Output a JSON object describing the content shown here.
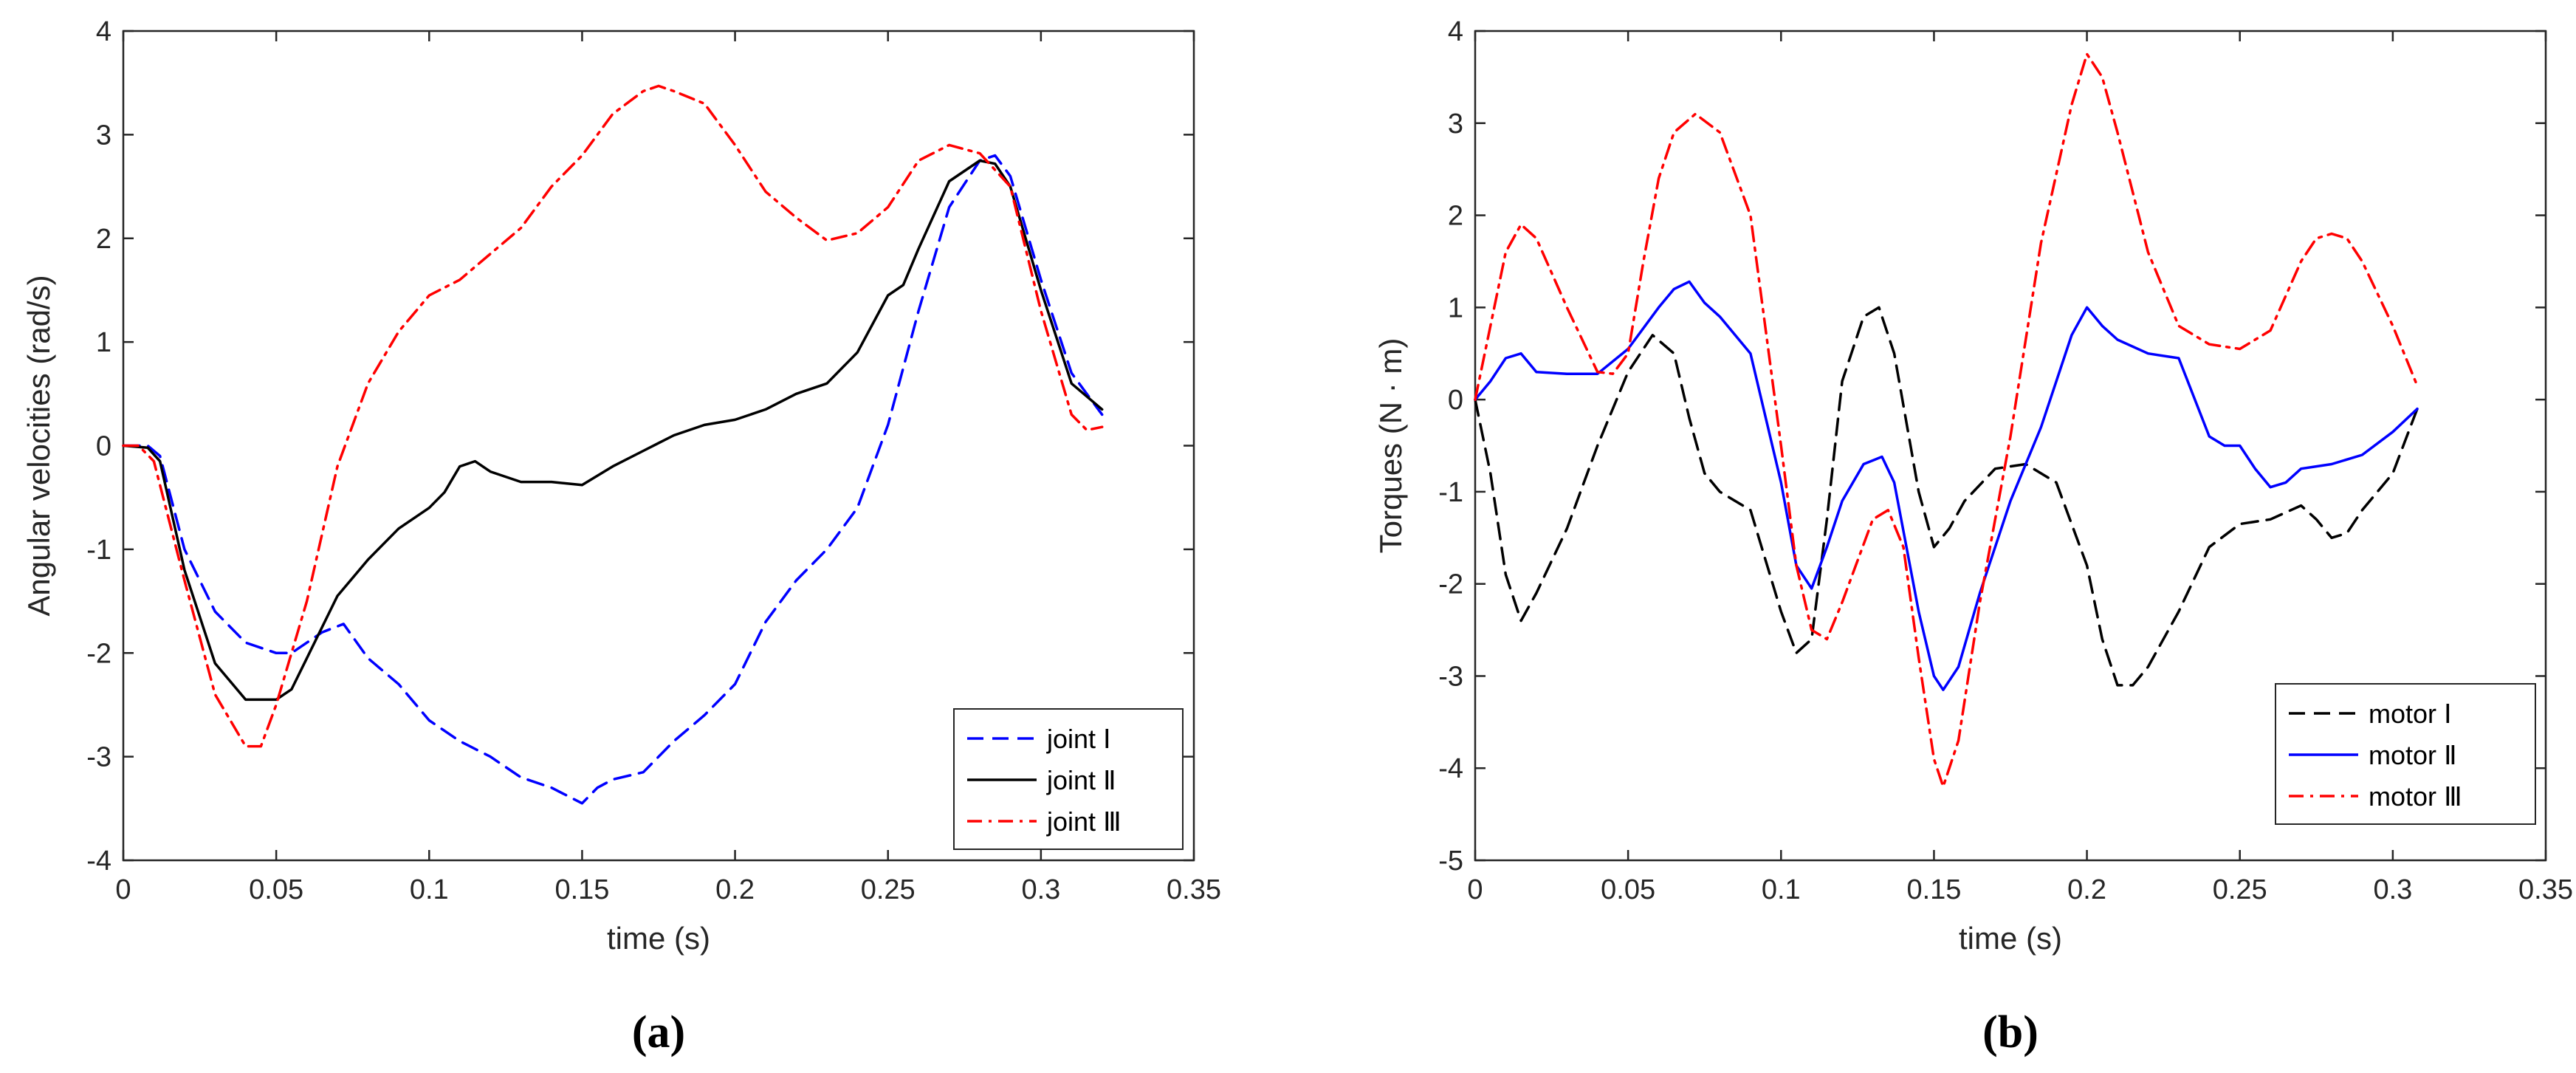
{
  "chart_data": [
    {
      "type": "line",
      "caption": "(a)",
      "xlabel": "time (s)",
      "ylabel": "Angular velocities  (rad/s)",
      "xlim": [
        0,
        0.35
      ],
      "ylim": [
        -4,
        4
      ],
      "xticks": [
        0,
        0.05,
        0.1,
        0.15,
        0.2,
        0.25,
        0.3,
        0.35
      ],
      "xtick_labels": [
        "0",
        "0.05",
        "0.1",
        "0.15",
        "0.2",
        "0.25",
        "0.3",
        "0.35"
      ],
      "yticks": [
        -4,
        -3,
        -2,
        -1,
        0,
        1,
        2,
        3,
        4
      ],
      "ytick_labels": [
        "-4",
        "-3",
        "-2",
        "-1",
        "0",
        "1",
        "2",
        "3",
        "4"
      ],
      "legend_position": "bottom-right",
      "series": [
        {
          "name": "joint Ⅰ",
          "color": "#0000ff",
          "style": "dashed",
          "x": [
            0,
            0.008,
            0.012,
            0.02,
            0.03,
            0.04,
            0.05,
            0.055,
            0.065,
            0.072,
            0.08,
            0.09,
            0.1,
            0.11,
            0.12,
            0.13,
            0.14,
            0.15,
            0.155,
            0.16,
            0.17,
            0.18,
            0.19,
            0.2,
            0.21,
            0.22,
            0.23,
            0.24,
            0.25,
            0.26,
            0.27,
            0.28,
            0.285,
            0.29,
            0.3,
            0.31,
            0.32
          ],
          "y": [
            0,
            0,
            -0.1,
            -1.0,
            -1.6,
            -1.9,
            -2.0,
            -2.0,
            -1.8,
            -1.72,
            -2.05,
            -2.3,
            -2.65,
            -2.85,
            -3.0,
            -3.2,
            -3.3,
            -3.45,
            -3.3,
            -3.22,
            -3.15,
            -2.85,
            -2.6,
            -2.3,
            -1.7,
            -1.3,
            -1.0,
            -0.6,
            0.2,
            1.3,
            2.3,
            2.75,
            2.8,
            2.6,
            1.6,
            0.7,
            0.3
          ]
        },
        {
          "name": "joint Ⅱ",
          "color": "#000000",
          "style": "solid",
          "x": [
            0,
            0.008,
            0.012,
            0.02,
            0.03,
            0.04,
            0.05,
            0.055,
            0.06,
            0.07,
            0.08,
            0.09,
            0.1,
            0.105,
            0.11,
            0.115,
            0.12,
            0.13,
            0.14,
            0.15,
            0.16,
            0.17,
            0.18,
            0.19,
            0.2,
            0.21,
            0.22,
            0.23,
            0.24,
            0.25,
            0.255,
            0.26,
            0.27,
            0.28,
            0.285,
            0.29,
            0.3,
            0.31,
            0.32
          ],
          "y": [
            0,
            -0.02,
            -0.15,
            -1.2,
            -2.1,
            -2.45,
            -2.45,
            -2.35,
            -2.05,
            -1.45,
            -1.1,
            -0.8,
            -0.6,
            -0.45,
            -0.2,
            -0.15,
            -0.25,
            -0.35,
            -0.35,
            -0.38,
            -0.2,
            -0.05,
            0.1,
            0.2,
            0.25,
            0.35,
            0.5,
            0.6,
            0.9,
            1.45,
            1.55,
            1.9,
            2.55,
            2.75,
            2.72,
            2.5,
            1.5,
            0.6,
            0.35
          ]
        },
        {
          "name": "joint Ⅲ",
          "color": "#ff0000",
          "style": "dashdot",
          "x": [
            0,
            0.005,
            0.01,
            0.02,
            0.03,
            0.04,
            0.045,
            0.05,
            0.06,
            0.07,
            0.08,
            0.09,
            0.1,
            0.11,
            0.12,
            0.13,
            0.14,
            0.15,
            0.16,
            0.17,
            0.175,
            0.18,
            0.19,
            0.2,
            0.21,
            0.22,
            0.23,
            0.24,
            0.25,
            0.26,
            0.27,
            0.28,
            0.29,
            0.3,
            0.31,
            0.315,
            0.32
          ],
          "y": [
            0,
            0,
            -0.15,
            -1.3,
            -2.4,
            -2.9,
            -2.9,
            -2.5,
            -1.5,
            -0.2,
            0.6,
            1.1,
            1.45,
            1.6,
            1.85,
            2.1,
            2.5,
            2.8,
            3.2,
            3.42,
            3.47,
            3.42,
            3.3,
            2.9,
            2.45,
            2.2,
            1.98,
            2.05,
            2.3,
            2.75,
            2.9,
            2.82,
            2.5,
            1.3,
            0.3,
            0.15,
            0.18
          ]
        }
      ]
    },
    {
      "type": "line",
      "caption": "(b)",
      "xlabel": "time (s)",
      "ylabel": "Torques  (N · m)",
      "xlim": [
        0,
        0.35
      ],
      "ylim": [
        -5,
        4
      ],
      "xticks": [
        0,
        0.05,
        0.1,
        0.15,
        0.2,
        0.25,
        0.3,
        0.35
      ],
      "xtick_labels": [
        "0",
        "0.05",
        "0.1",
        "0.15",
        "0.2",
        "0.25",
        "0.3",
        "0.35"
      ],
      "yticks": [
        -5,
        -4,
        -3,
        -2,
        -1,
        0,
        1,
        2,
        3,
        4
      ],
      "ytick_labels": [
        "-5",
        "-4",
        "-3",
        "-2",
        "-1",
        "0",
        "1",
        "2",
        "3",
        "4"
      ],
      "legend_position": "bottom-right",
      "series": [
        {
          "name": "motor Ⅰ",
          "color": "#000000",
          "style": "dashed",
          "x": [
            0,
            0.005,
            0.01,
            0.015,
            0.02,
            0.03,
            0.04,
            0.05,
            0.058,
            0.065,
            0.07,
            0.075,
            0.08,
            0.09,
            0.1,
            0.105,
            0.11,
            0.115,
            0.12,
            0.127,
            0.132,
            0.137,
            0.145,
            0.15,
            0.155,
            0.16,
            0.17,
            0.18,
            0.19,
            0.2,
            0.205,
            0.21,
            0.215,
            0.22,
            0.23,
            0.24,
            0.25,
            0.26,
            0.27,
            0.275,
            0.28,
            0.285,
            0.29,
            0.3,
            0.308
          ],
          "y": [
            0,
            -0.8,
            -1.9,
            -2.4,
            -2.1,
            -1.4,
            -0.5,
            0.3,
            0.7,
            0.5,
            -0.2,
            -0.8,
            -1.0,
            -1.2,
            -2.3,
            -2.75,
            -2.6,
            -1.3,
            0.2,
            0.9,
            1.0,
            0.5,
            -1.0,
            -1.6,
            -1.4,
            -1.1,
            -0.75,
            -0.7,
            -0.9,
            -1.8,
            -2.6,
            -3.1,
            -3.1,
            -2.9,
            -2.3,
            -1.6,
            -1.35,
            -1.3,
            -1.15,
            -1.3,
            -1.5,
            -1.45,
            -1.2,
            -0.8,
            -0.1
          ]
        },
        {
          "name": "motor Ⅱ",
          "color": "#0000ff",
          "style": "solid",
          "x": [
            0,
            0.005,
            0.01,
            0.015,
            0.02,
            0.03,
            0.04,
            0.05,
            0.06,
            0.065,
            0.07,
            0.075,
            0.08,
            0.09,
            0.1,
            0.105,
            0.11,
            0.115,
            0.12,
            0.127,
            0.133,
            0.137,
            0.145,
            0.15,
            0.153,
            0.158,
            0.165,
            0.175,
            0.185,
            0.195,
            0.2,
            0.205,
            0.21,
            0.22,
            0.23,
            0.24,
            0.245,
            0.25,
            0.255,
            0.26,
            0.265,
            0.27,
            0.28,
            0.29,
            0.3,
            0.308
          ],
          "y": [
            0,
            0.2,
            0.45,
            0.5,
            0.3,
            0.28,
            0.28,
            0.55,
            1.0,
            1.2,
            1.28,
            1.05,
            0.9,
            0.5,
            -0.9,
            -1.8,
            -2.05,
            -1.6,
            -1.1,
            -0.7,
            -0.62,
            -0.9,
            -2.3,
            -3.0,
            -3.15,
            -2.9,
            -2.1,
            -1.1,
            -0.3,
            0.7,
            1.0,
            0.8,
            0.65,
            0.5,
            0.45,
            -0.4,
            -0.5,
            -0.5,
            -0.75,
            -0.95,
            -0.9,
            -0.75,
            -0.7,
            -0.6,
            -0.35,
            -0.1
          ]
        },
        {
          "name": "motor Ⅲ",
          "color": "#ff0000",
          "style": "dashdot",
          "x": [
            0,
            0.005,
            0.01,
            0.015,
            0.02,
            0.03,
            0.04,
            0.045,
            0.05,
            0.055,
            0.06,
            0.065,
            0.072,
            0.08,
            0.09,
            0.1,
            0.105,
            0.11,
            0.115,
            0.12,
            0.13,
            0.135,
            0.14,
            0.145,
            0.15,
            0.153,
            0.158,
            0.165,
            0.175,
            0.185,
            0.195,
            0.2,
            0.205,
            0.21,
            0.22,
            0.23,
            0.24,
            0.25,
            0.26,
            0.27,
            0.275,
            0.28,
            0.285,
            0.29,
            0.3,
            0.308
          ],
          "y": [
            0,
            0.8,
            1.6,
            1.9,
            1.75,
            1.0,
            0.3,
            0.28,
            0.5,
            1.5,
            2.4,
            2.9,
            3.1,
            2.9,
            2.0,
            -0.5,
            -1.8,
            -2.5,
            -2.6,
            -2.2,
            -1.3,
            -1.2,
            -1.6,
            -2.8,
            -3.9,
            -4.2,
            -3.7,
            -2.2,
            -0.4,
            1.7,
            3.2,
            3.75,
            3.5,
            2.9,
            1.6,
            0.8,
            0.6,
            0.55,
            0.75,
            1.5,
            1.75,
            1.8,
            1.75,
            1.5,
            0.8,
            0.15
          ]
        }
      ]
    }
  ]
}
